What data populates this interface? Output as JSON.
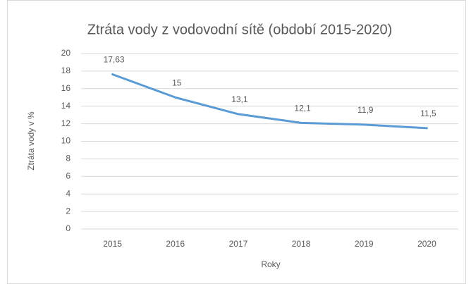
{
  "chart_data": {
    "type": "line",
    "title": "Ztráta vody z vodovodní sítě (období 2015-2020)",
    "x_label": "Roky",
    "y_label": "Ztráta vody v %",
    "categories": [
      "2015",
      "2016",
      "2017",
      "2018",
      "2019",
      "2020"
    ],
    "values": [
      17.63,
      15,
      13.1,
      12.1,
      11.9,
      11.5
    ],
    "value_labels": [
      "17,63",
      "15",
      "13,1",
      "12,1",
      "11,9",
      "11,5"
    ],
    "color": "#5b9bd5",
    "ylim": [
      0,
      20
    ],
    "yticks": [
      0,
      2,
      4,
      6,
      8,
      10,
      12,
      14,
      16,
      18,
      20
    ],
    "grid": true
  }
}
